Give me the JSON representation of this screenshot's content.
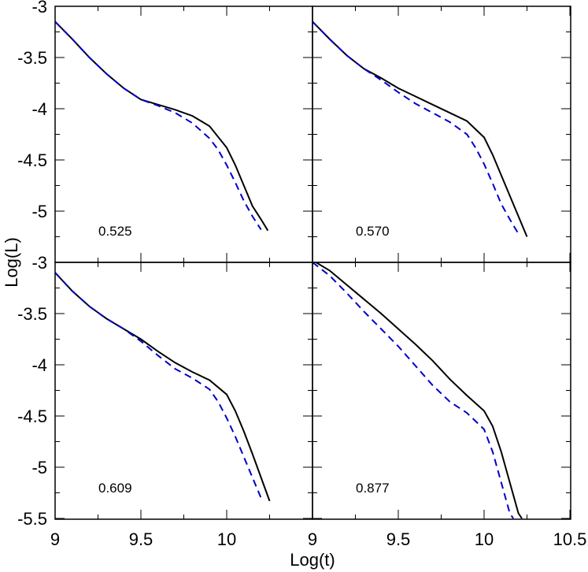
{
  "chart_data": {
    "type": "line",
    "title": "",
    "xlabel": "Log(t)",
    "ylabel": "Log(L)",
    "grid": false,
    "colors": {
      "solid": "#000000",
      "dashed": "#0000cc"
    },
    "panels": [
      {
        "label": "0.525",
        "xlim": [
          9,
          10.5
        ],
        "ylim": [
          -5.5,
          -3
        ],
        "series": [
          {
            "style": "solid",
            "x": [
              9.0,
              9.1,
              9.2,
              9.3,
              9.4,
              9.5,
              9.6,
              9.7,
              9.8,
              9.9,
              10.0,
              10.05,
              10.1,
              10.15,
              10.2,
              10.24
            ],
            "y": [
              -3.15,
              -3.32,
              -3.5,
              -3.66,
              -3.8,
              -3.91,
              -3.96,
              -4.01,
              -4.07,
              -4.17,
              -4.38,
              -4.55,
              -4.75,
              -4.95,
              -5.08,
              -5.19
            ]
          },
          {
            "style": "dashed",
            "x": [
              9.0,
              9.1,
              9.2,
              9.3,
              9.4,
              9.5,
              9.6,
              9.7,
              9.8,
              9.9,
              9.95,
              10.0,
              10.05,
              10.1,
              10.15,
              10.2
            ],
            "y": [
              -3.15,
              -3.32,
              -3.5,
              -3.66,
              -3.8,
              -3.91,
              -3.97,
              -4.04,
              -4.14,
              -4.29,
              -4.4,
              -4.55,
              -4.72,
              -4.9,
              -5.05,
              -5.18
            ]
          }
        ]
      },
      {
        "label": "0.570",
        "xlim": [
          9,
          10.5
        ],
        "ylim": [
          -5.5,
          -3
        ],
        "series": [
          {
            "style": "solid",
            "x": [
              9.0,
              9.1,
              9.2,
              9.3,
              9.4,
              9.5,
              9.6,
              9.7,
              9.8,
              9.9,
              10.0,
              10.05,
              10.1,
              10.15,
              10.2,
              10.25
            ],
            "y": [
              -3.15,
              -3.32,
              -3.48,
              -3.61,
              -3.7,
              -3.8,
              -3.88,
              -3.96,
              -4.04,
              -4.12,
              -4.28,
              -4.45,
              -4.65,
              -4.85,
              -5.05,
              -5.25
            ]
          },
          {
            "style": "dashed",
            "x": [
              9.0,
              9.1,
              9.2,
              9.3,
              9.4,
              9.5,
              9.6,
              9.7,
              9.8,
              9.9,
              9.95,
              10.0,
              10.05,
              10.1,
              10.15,
              10.2
            ],
            "y": [
              -3.15,
              -3.32,
              -3.48,
              -3.61,
              -3.72,
              -3.84,
              -3.95,
              -4.04,
              -4.13,
              -4.25,
              -4.38,
              -4.54,
              -4.73,
              -4.93,
              -5.08,
              -5.22
            ]
          }
        ]
      },
      {
        "label": "0.609",
        "xlim": [
          9,
          10.5
        ],
        "ylim": [
          -5.5,
          -3
        ],
        "series": [
          {
            "style": "solid",
            "x": [
              9.0,
              9.1,
              9.2,
              9.3,
              9.4,
              9.5,
              9.6,
              9.7,
              9.8,
              9.9,
              10.0,
              10.05,
              10.1,
              10.15,
              10.2,
              10.25
            ],
            "y": [
              -3.1,
              -3.28,
              -3.43,
              -3.55,
              -3.65,
              -3.75,
              -3.87,
              -3.98,
              -4.07,
              -4.15,
              -4.29,
              -4.45,
              -4.65,
              -4.87,
              -5.1,
              -5.33
            ]
          },
          {
            "style": "dashed",
            "x": [
              9.0,
              9.1,
              9.2,
              9.3,
              9.4,
              9.5,
              9.6,
              9.7,
              9.8,
              9.9,
              9.95,
              10.0,
              10.05,
              10.1,
              10.15,
              10.2
            ],
            "y": [
              -3.1,
              -3.28,
              -3.43,
              -3.55,
              -3.65,
              -3.77,
              -3.91,
              -4.04,
              -4.13,
              -4.24,
              -4.36,
              -4.52,
              -4.7,
              -4.9,
              -5.1,
              -5.3
            ]
          }
        ]
      },
      {
        "label": "0.877",
        "xlim": [
          9,
          10.5
        ],
        "ylim": [
          -5.5,
          -3
        ],
        "series": [
          {
            "style": "solid",
            "x": [
              9.02,
              9.1,
              9.2,
              9.3,
              9.4,
              9.5,
              9.6,
              9.7,
              9.8,
              9.9,
              10.0,
              10.05,
              10.1,
              10.15,
              10.2,
              10.22
            ],
            "y": [
              -3.0,
              -3.08,
              -3.22,
              -3.36,
              -3.5,
              -3.65,
              -3.8,
              -3.96,
              -4.14,
              -4.3,
              -4.45,
              -4.6,
              -4.85,
              -5.15,
              -5.45,
              -5.5
            ]
          },
          {
            "style": "dashed",
            "x": [
              9.0,
              9.1,
              9.2,
              9.3,
              9.4,
              9.5,
              9.6,
              9.7,
              9.8,
              9.9,
              10.0,
              10.05,
              10.1,
              10.15,
              10.17
            ],
            "y": [
              -3.0,
              -3.13,
              -3.3,
              -3.48,
              -3.65,
              -3.82,
              -4.01,
              -4.2,
              -4.36,
              -4.47,
              -4.63,
              -4.85,
              -5.15,
              -5.45,
              -5.5
            ]
          }
        ]
      }
    ],
    "x_ticks_left": [
      "9",
      "9.5",
      "10"
    ],
    "x_ticks_right": [
      "9",
      "9.5",
      "10",
      "10.5"
    ],
    "y_ticks_top": [
      "-3",
      "-3.5",
      "-4",
      "-4.5",
      "-5"
    ],
    "y_ticks_bottom": [
      "-3",
      "-3.5",
      "-4",
      "-4.5",
      "-5",
      "-5.5"
    ]
  }
}
